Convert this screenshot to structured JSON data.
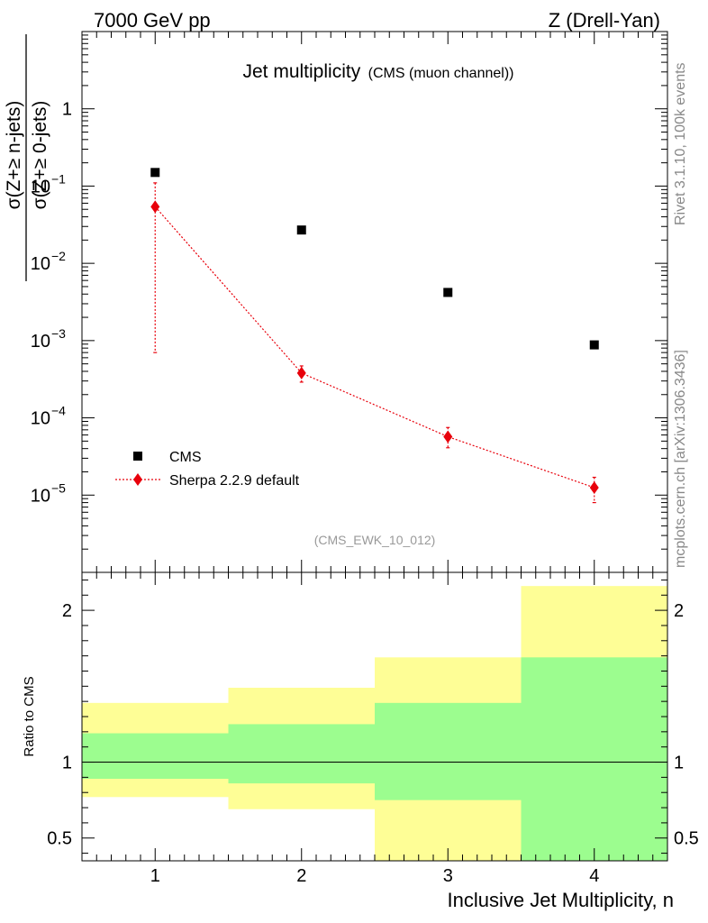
{
  "header": {
    "left": "7000 GeV pp",
    "right": "Z (Drell-Yan)"
  },
  "side_labels": {
    "rivet": "Rivet 3.1.10,  100k events",
    "mcplots": "mcplots.cern.ch [arXiv:1306.3436]"
  },
  "colors": {
    "data": "#000000",
    "mc": "#e8000b",
    "band_inner": "#9cfd8f",
    "band_outer": "#fefe96"
  },
  "chart_data": [
    {
      "type": "scatter",
      "title": "Jet multiplicity",
      "subtitle": "(CMS (muon channel))",
      "analysis_tag": "(CMS_EWK_10_012)",
      "ylabel_num": "σ(Z+≥ n-jets)",
      "ylabel_den": "σ(Z+≥ 0-jets)",
      "yscale": "log",
      "ylim": [
        1e-06,
        10
      ],
      "xlim": [
        0.5,
        4.5
      ],
      "yticks": [
        {
          "v": 1e-05,
          "base": "10",
          "exp": "−5"
        },
        {
          "v": 0.0001,
          "base": "10",
          "exp": "−4"
        },
        {
          "v": 0.001,
          "base": "10",
          "exp": "−3"
        },
        {
          "v": 0.01,
          "base": "10",
          "exp": "−2"
        },
        {
          "v": 0.1,
          "base": "10",
          "exp": "−1"
        },
        {
          "v": 1,
          "base": "1",
          "exp": ""
        }
      ],
      "legend_position": "lower-left",
      "series": [
        {
          "name": "CMS",
          "marker": "square",
          "x": [
            1,
            2,
            3,
            4
          ],
          "values": [
            0.15,
            0.027,
            0.0042,
            0.00088
          ]
        },
        {
          "name": "Sherpa 2.2.9 default",
          "marker": "diamond",
          "line": "dotted",
          "x": [
            1,
            2,
            3,
            4
          ],
          "values": [
            0.054,
            0.00038,
            5.7e-05,
            1.25e-05
          ],
          "err_low": [
            0.0533,
            9e-05,
            1.6e-05,
            4.5e-06
          ],
          "err_high": [
            0.056,
            9e-05,
            1.8e-05,
            4.5e-06
          ]
        }
      ]
    },
    {
      "type": "ratio",
      "ylabel": "Ratio to CMS",
      "xlabel": "Inclusive Jet Multiplicity, n",
      "ylim": [
        0.35,
        2.25
      ],
      "yticks": [
        {
          "v": 0.5,
          "label": "0.5"
        },
        {
          "v": 1,
          "label": "1"
        },
        {
          "v": 2,
          "label": "2"
        }
      ],
      "xticks": [
        {
          "v": 1,
          "label": "1"
        },
        {
          "v": 2,
          "label": "2"
        },
        {
          "v": 3,
          "label": "3"
        },
        {
          "v": 4,
          "label": "4"
        }
      ],
      "reference": 1,
      "bins": [
        {
          "lo": 0.5,
          "hi": 1.5,
          "inner": [
            0.89,
            1.19
          ],
          "outer": [
            0.77,
            1.39
          ]
        },
        {
          "lo": 1.5,
          "hi": 2.5,
          "inner": [
            0.86,
            1.25
          ],
          "outer": [
            0.69,
            1.49
          ]
        },
        {
          "lo": 2.5,
          "hi": 3.5,
          "inner": [
            0.75,
            1.39
          ],
          "outer": [
            0.35,
            1.69
          ]
        },
        {
          "lo": 3.5,
          "hi": 4.5,
          "inner": [
            0.35,
            1.69
          ],
          "outer": [
            0.35,
            2.16
          ]
        }
      ]
    }
  ]
}
